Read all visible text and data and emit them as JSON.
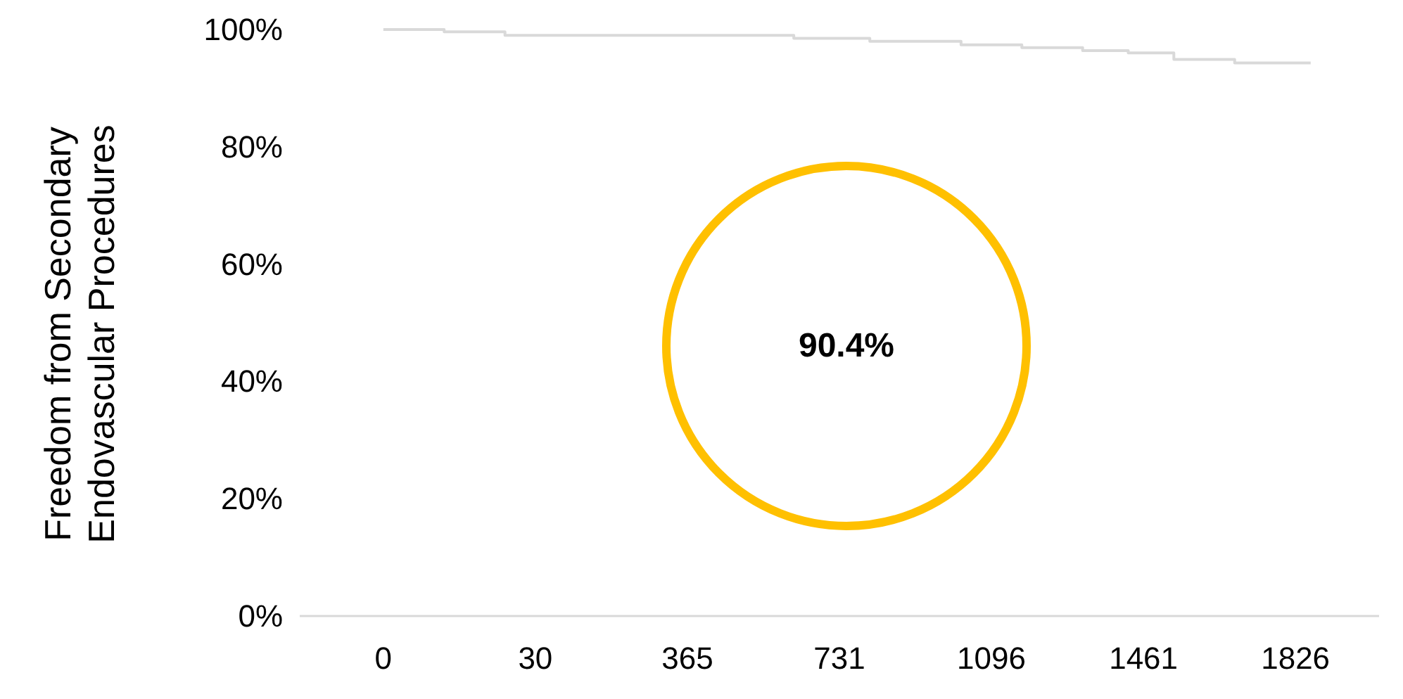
{
  "chart_data": {
    "type": "step",
    "ylabel": "Freedom from Secondary\nEndovascular Procedures",
    "categories": [
      null,
      null,
      null,
      null,
      null,
      "0",
      null,
      null,
      null,
      null,
      null,
      null,
      null,
      null,
      null,
      "30",
      null,
      null,
      null,
      null,
      null,
      null,
      null,
      null,
      null,
      "365",
      null,
      null,
      null,
      null,
      null,
      null,
      null,
      null,
      null,
      "731",
      null,
      null,
      null,
      null,
      null,
      null,
      null,
      null,
      null,
      "1096",
      null,
      null,
      null,
      null,
      null,
      null,
      null,
      null,
      null,
      "1461",
      null,
      null,
      null,
      null,
      null,
      null,
      null,
      null,
      null,
      "1826",
      null,
      null,
      null,
      null,
      null
    ],
    "ylim": [
      0,
      100
    ],
    "yticks": [
      {
        "value": 0,
        "label": "0%"
      },
      {
        "value": 20,
        "label": "20%"
      },
      {
        "value": 40,
        "label": "40%"
      },
      {
        "value": 60,
        "label": "60%"
      },
      {
        "value": 80,
        "label": "80%"
      },
      {
        "value": 100,
        "label": "100%"
      }
    ],
    "series": [
      {
        "color": "#d9d9d9",
        "values": [
          null,
          null,
          null,
          null,
          null,
          100,
          100,
          100,
          100,
          99.6,
          99.6,
          99.6,
          99.6,
          99.0,
          99.0,
          99.0,
          99.0,
          99.0,
          99.0,
          99.0,
          99.0,
          99.0,
          99.0,
          99.0,
          99.0,
          99.0,
          99.0,
          99.0,
          99.0,
          99.0,
          99.0,
          99.0,
          98.5,
          98.5,
          98.5,
          98.5,
          98.5,
          98.0,
          98.0,
          98.0,
          98.0,
          98.0,
          98.0,
          97.4,
          97.4,
          97.4,
          97.4,
          96.9,
          96.9,
          96.9,
          96.9,
          96.4,
          96.4,
          96.4,
          96.0,
          96.0,
          96.0,
          94.9,
          94.9,
          94.9,
          94.9,
          94.3,
          94.3,
          94.3,
          94.3,
          94.3,
          94.3,
          null,
          null,
          null,
          null
        ]
      }
    ],
    "annotations": [
      "90.4%"
    ],
    "grid": false,
    "marker": "none",
    "line_style": "solid"
  }
}
